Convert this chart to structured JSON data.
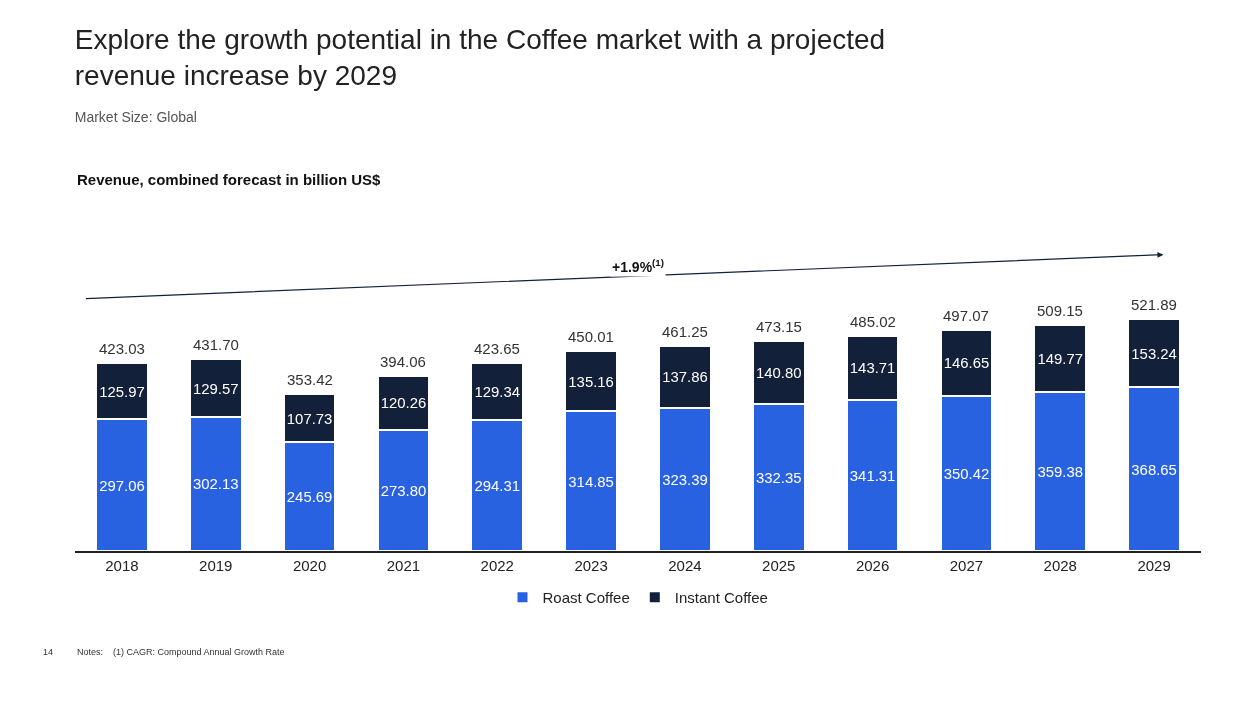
{
  "chart_data": {
    "type": "bar",
    "title": "Explore the growth potential in the Coffee market with a projected revenue increase by 2029",
    "subtitle": "Market Size: Global",
    "categories": [
      "2018",
      "2019",
      "2020",
      "2021",
      "2022",
      "2023",
      "2024",
      "2025",
      "2026",
      "2027",
      "2028",
      "2029"
    ],
    "stacked": true,
    "legend": "bottom",
    "series": [
      {
        "name": "Roast Coffee",
        "color": "#2962e0",
        "values": [
          297.06,
          302.13,
          245.69,
          273.8,
          294.31,
          314.85,
          323.39,
          332.35,
          341.31,
          350.42,
          359.38,
          368.65
        ],
        "value_labels": [
          "297.06",
          "302.13",
          "245.69",
          "273.80",
          "294.31",
          "314.85",
          "323.39",
          "332.35",
          "341.31",
          "350.42",
          "359.38",
          "368.65"
        ]
      },
      {
        "name": "Instant Coffee",
        "color": "#13203a",
        "values": [
          125.97,
          129.57,
          107.73,
          120.26,
          129.34,
          135.16,
          137.86,
          140.8,
          143.71,
          146.65,
          149.77,
          153.24
        ],
        "value_labels": [
          "125.97",
          "129.57",
          "107.73",
          "120.26",
          "129.34",
          "135.16",
          "137.86",
          "140.80",
          "143.71",
          "146.65",
          "149.77",
          "153.24"
        ]
      }
    ],
    "totals": [
      "423.03",
      "431.70",
      "353.42",
      "394.06",
      "423.65",
      "450.01",
      "461.25",
      "473.15",
      "485.02",
      "497.07",
      "509.15",
      "521.89"
    ],
    "annotations": [
      "Revenue, combined forecast in billion US$",
      "+1.9%$^{(1)}$",
      "Notes:    (1) CAGR: Compound Annual Growth Rate",
      "14"
    ]
  }
}
